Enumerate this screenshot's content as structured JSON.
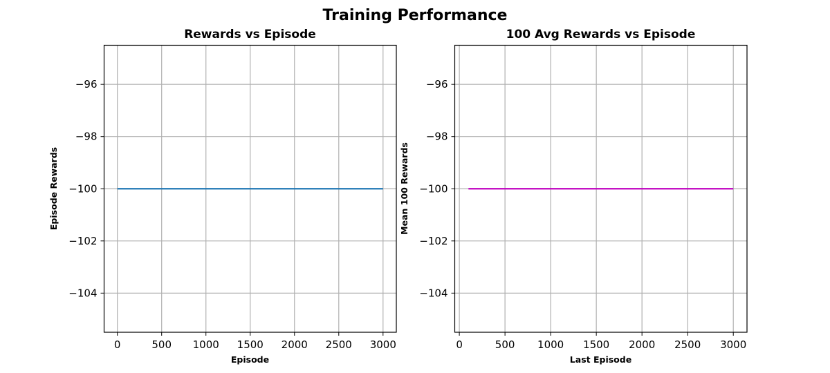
{
  "figure": {
    "title": "Training Performance"
  },
  "chart_data": [
    {
      "type": "line",
      "title": "Rewards vs Episode",
      "xlabel": "Episode",
      "ylabel": "Episode Rewards",
      "xlim": [
        -150,
        3150
      ],
      "ylim": [
        -105.5,
        -94.5
      ],
      "xticks": [
        0,
        500,
        1000,
        1500,
        2000,
        2500,
        3000
      ],
      "xtick_labels": [
        "0",
        "500",
        "1000",
        "1500",
        "2000",
        "2500",
        "3000"
      ],
      "yticks": [
        -104,
        -102,
        -100,
        -98,
        -96
      ],
      "ytick_labels": [
        "−104",
        "−102",
        "−100",
        "−98",
        "−96"
      ],
      "grid": true,
      "series": [
        {
          "color": "#1f77b4",
          "x": [
            0,
            500,
            1000,
            1500,
            2000,
            2500,
            3000
          ],
          "y": [
            -100,
            -100,
            -100,
            -100,
            -100,
            -100,
            -100
          ]
        }
      ]
    },
    {
      "type": "line",
      "title": "100 Avg Rewards vs Episode",
      "xlabel": "Last Episode",
      "ylabel": "Mean 100 Rewards",
      "xlim": [
        -50,
        3150
      ],
      "ylim": [
        -105.5,
        -94.5
      ],
      "xticks": [
        0,
        500,
        1000,
        1500,
        2000,
        2500,
        3000
      ],
      "xtick_labels": [
        "0",
        "500",
        "1000",
        "1500",
        "2000",
        "2500",
        "3000"
      ],
      "yticks": [
        -104,
        -102,
        -100,
        -98,
        -96
      ],
      "ytick_labels": [
        "−104",
        "−102",
        "−100",
        "−98",
        "−96"
      ],
      "grid": true,
      "series": [
        {
          "color": "#bf00bf",
          "x": [
            100,
            500,
            1000,
            1500,
            2000,
            2500,
            3000
          ],
          "y": [
            -100,
            -100,
            -100,
            -100,
            -100,
            -100,
            -100
          ]
        }
      ]
    }
  ]
}
